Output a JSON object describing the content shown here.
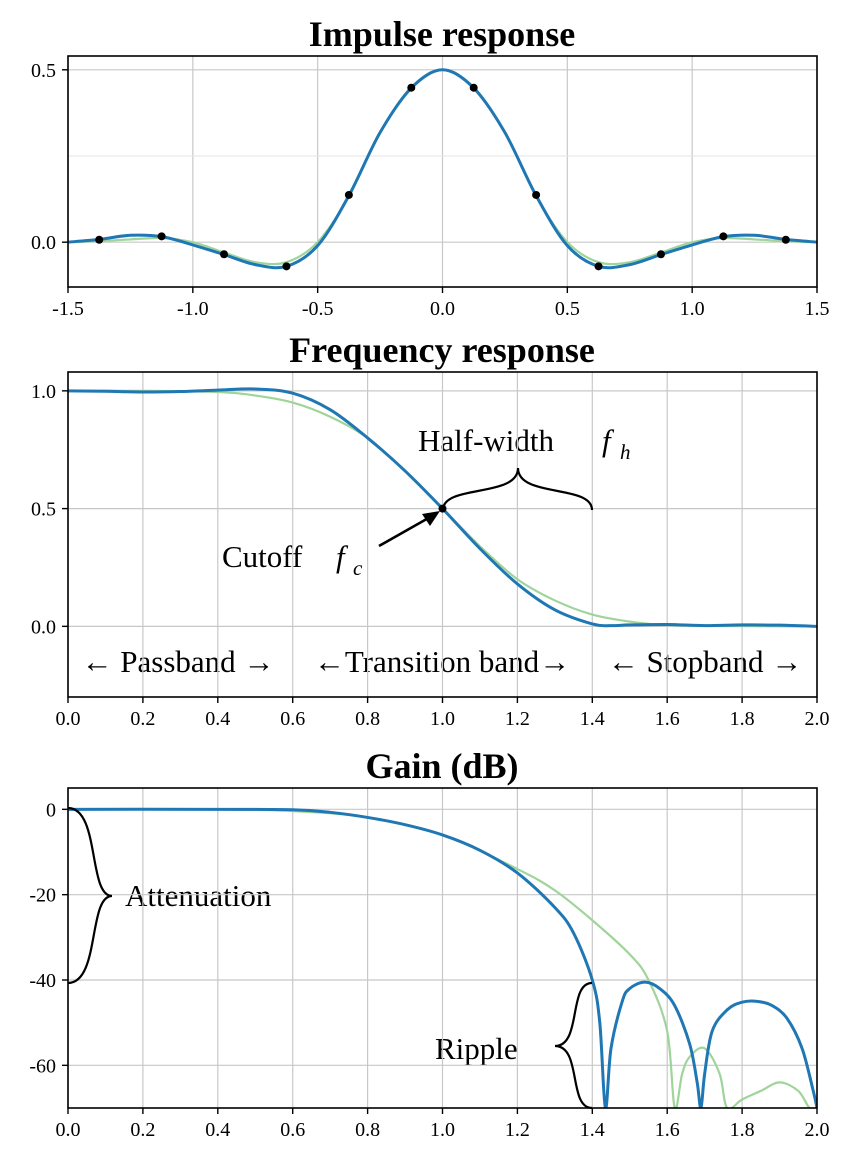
{
  "colors": {
    "main": "#1f77b4",
    "reference": "#9fd49a",
    "grid": "#c8c8c8",
    "markers": "#000000"
  },
  "chart_data": [
    {
      "type": "line",
      "title": "Impulse response",
      "xlim": [
        -1.5,
        1.5
      ],
      "ylim": [
        -0.13,
        0.54
      ],
      "x_ticks": [
        "-1.5",
        "-1.0",
        "-0.5",
        "0.0",
        "0.5",
        "1.0",
        "1.5"
      ],
      "y_ticks": [
        "0.0",
        "0.5"
      ],
      "grid": true,
      "series": [
        {
          "role": "reference",
          "x": [
            -1.5,
            -1.375,
            -1.25,
            -1.125,
            -1.0,
            -0.875,
            -0.75,
            -0.625,
            -0.5,
            -0.375,
            -0.25,
            -0.125,
            0,
            0.125,
            0.25,
            0.375,
            0.5,
            0.625,
            0.75,
            0.875,
            1.0,
            1.125,
            1.25,
            1.375,
            1.5
          ],
          "y": [
            0.0,
            0.003,
            0.008,
            0.012,
            0.0,
            -0.03,
            -0.058,
            -0.058,
            0.0,
            0.133,
            0.318,
            0.45,
            0.5,
            0.45,
            0.318,
            0.133,
            0.0,
            -0.058,
            -0.058,
            -0.03,
            0.0,
            0.012,
            0.008,
            0.003,
            0.0
          ]
        },
        {
          "role": "main",
          "x": [
            -1.5,
            -1.375,
            -1.25,
            -1.125,
            -1.0,
            -0.875,
            -0.75,
            -0.625,
            -0.5,
            -0.375,
            -0.25,
            -0.125,
            0,
            0.125,
            0.25,
            0.375,
            0.5,
            0.625,
            0.75,
            0.875,
            1.0,
            1.125,
            1.25,
            1.375,
            1.5
          ],
          "y": [
            0.0,
            0.008,
            0.02,
            0.016,
            -0.008,
            -0.036,
            -0.065,
            -0.07,
            -0.01,
            0.135,
            0.318,
            0.447,
            0.5,
            0.447,
            0.318,
            0.135,
            -0.01,
            -0.07,
            -0.065,
            -0.036,
            -0.008,
            0.016,
            0.02,
            0.008,
            0.0
          ]
        },
        {
          "role": "samples",
          "x": [
            -1.375,
            -1.125,
            -0.875,
            -0.625,
            -0.375,
            -0.125,
            0.125,
            0.375,
            0.625,
            0.875,
            1.125,
            1.375
          ],
          "y": [
            0.007,
            0.017,
            -0.035,
            -0.07,
            0.137,
            0.448,
            0.448,
            0.137,
            -0.07,
            -0.035,
            0.017,
            0.007
          ]
        }
      ]
    },
    {
      "type": "line",
      "title": "Frequency response",
      "xlim": [
        0,
        2
      ],
      "ylim": [
        -0.3,
        1.08
      ],
      "x_ticks": [
        "0.0",
        "0.2",
        "0.4",
        "0.6",
        "0.8",
        "1.0",
        "1.2",
        "1.4",
        "1.6",
        "1.8",
        "2.0"
      ],
      "y_ticks": [
        "0.0",
        "0.5",
        "1.0"
      ],
      "grid": true,
      "series": [
        {
          "role": "reference",
          "x": [
            0,
            0.2,
            0.4,
            0.5,
            0.6,
            0.7,
            0.8,
            0.9,
            1.0,
            1.1,
            1.2,
            1.3,
            1.4,
            1.5,
            1.6,
            1.8,
            2.0
          ],
          "y": [
            1.0,
            1.0,
            0.995,
            0.98,
            0.95,
            0.89,
            0.8,
            0.66,
            0.5,
            0.34,
            0.2,
            0.11,
            0.05,
            0.02,
            0.005,
            0.001,
            0.0
          ]
        },
        {
          "role": "main",
          "x": [
            0,
            0.1,
            0.2,
            0.3,
            0.4,
            0.5,
            0.6,
            0.7,
            0.8,
            0.9,
            1.0,
            1.1,
            1.2,
            1.3,
            1.4,
            1.45,
            1.5,
            1.6,
            1.7,
            1.8,
            1.9,
            2.0
          ],
          "y": [
            1.0,
            0.998,
            0.995,
            0.997,
            1.003,
            1.008,
            0.99,
            0.92,
            0.8,
            0.66,
            0.5,
            0.33,
            0.18,
            0.07,
            0.01,
            0.003,
            0.006,
            0.008,
            0.003,
            0.006,
            0.005,
            0.0
          ]
        },
        {
          "role": "marker",
          "x": [
            1.0
          ],
          "y": [
            0.5
          ]
        }
      ],
      "annotations": {
        "half_width_text": "Half-width",
        "half_width_symbol": "f",
        "half_width_subscript": "h",
        "cutoff_text": "Cutoff",
        "cutoff_symbol": "f",
        "cutoff_subscript": "c",
        "passband": "← Passband →",
        "transition": "←Transition band→",
        "stopband": "← Stopband →"
      }
    },
    {
      "type": "line",
      "title": "Gain (dB)",
      "xlim": [
        0,
        2
      ],
      "ylim": [
        -70,
        5
      ],
      "x_ticks": [
        "0.0",
        "0.2",
        "0.4",
        "0.6",
        "0.8",
        "1.0",
        "1.2",
        "1.4",
        "1.6",
        "1.8",
        "2.0"
      ],
      "y_ticks": [
        "0",
        "-20",
        "-40",
        "-60"
      ],
      "grid": true,
      "series": [
        {
          "role": "reference",
          "x": [
            0,
            0.4,
            0.6,
            0.8,
            1.0,
            1.2,
            1.3,
            1.4,
            1.5,
            1.55,
            1.6,
            1.62,
            1.64,
            1.66,
            1.7,
            1.74,
            1.76,
            1.8,
            1.85,
            1.9,
            1.95,
            1.98,
            2.0
          ],
          "y": [
            0,
            0,
            -0.4,
            -1.9,
            -6.0,
            -14,
            -19,
            -26,
            -34,
            -40,
            -52,
            -70,
            -62,
            -58,
            -56,
            -62,
            -70,
            -68,
            -66,
            -64,
            -66,
            -70,
            -70
          ]
        },
        {
          "role": "main",
          "x": [
            0,
            0.4,
            0.6,
            0.7,
            0.8,
            0.9,
            1.0,
            1.1,
            1.2,
            1.3,
            1.35,
            1.4,
            1.42,
            1.435,
            1.45,
            1.48,
            1.5,
            1.54,
            1.58,
            1.62,
            1.66,
            1.68,
            1.69,
            1.7,
            1.72,
            1.76,
            1.8,
            1.84,
            1.88,
            1.92,
            1.96,
            1.99,
            2.0
          ],
          "y": [
            0,
            0,
            -0.1,
            -0.7,
            -1.9,
            -3.6,
            -6.0,
            -9.6,
            -14.9,
            -23,
            -29,
            -40,
            -50,
            -70,
            -56,
            -45,
            -42,
            -40.5,
            -42,
            -46,
            -55,
            -64,
            -70,
            -62,
            -52,
            -47,
            -45.2,
            -45,
            -46,
            -49,
            -56,
            -66,
            -70
          ]
        }
      ],
      "annotations": {
        "attenuation": "Attenuation",
        "ripple": "Ripple"
      }
    }
  ]
}
